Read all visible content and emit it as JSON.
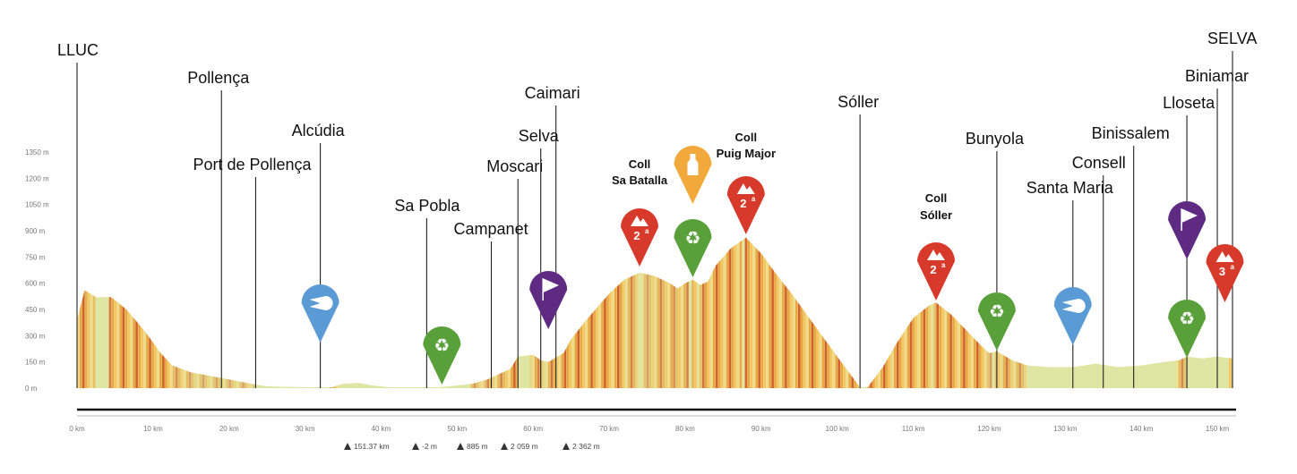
{
  "chart_data": {
    "type": "area",
    "title": "",
    "xlabel": "",
    "ylabel": "",
    "xlim": [
      0,
      152
    ],
    "ylim": [
      0,
      1350
    ],
    "y_ticks": [
      "0 m",
      "150 m",
      "300 m",
      "450 m",
      "600 m",
      "750 m",
      "900 m",
      "1050 m",
      "1200 m",
      "1350 m"
    ],
    "x_ticks": [
      "0 km",
      "10 km",
      "20 km",
      "30 km",
      "40 km",
      "50 km",
      "60 km",
      "70 km",
      "80 km",
      "90 km",
      "100 km",
      "110 km",
      "120 km",
      "130 km",
      "140 km",
      "150 km"
    ],
    "x_tick_values": [
      0,
      10,
      20,
      30,
      40,
      50,
      60,
      70,
      80,
      90,
      100,
      110,
      120,
      130,
      140,
      150
    ],
    "y_tick_values": [
      0,
      150,
      300,
      450,
      600,
      750,
      900,
      1050,
      1200,
      1350
    ],
    "profile": {
      "x": [
        0,
        1,
        2.5,
        4.5,
        6.5,
        9,
        11,
        12.5,
        15,
        20,
        23.5,
        25,
        30,
        32,
        33.5,
        35,
        37,
        39,
        41,
        46,
        47.5,
        50,
        52,
        54,
        55,
        57,
        58,
        60,
        61,
        62,
        63,
        64,
        65,
        67,
        70,
        72,
        74,
        76,
        78,
        79,
        80,
        81,
        82,
        83,
        84,
        86,
        88,
        90,
        92,
        94,
        96,
        98,
        100,
        103,
        104,
        106,
        108,
        110,
        112,
        113,
        115,
        117,
        119,
        120,
        121,
        123,
        125,
        128,
        131,
        134,
        137,
        140,
        143,
        145,
        146,
        148,
        150,
        152
      ],
      "y": [
        390,
        560,
        520,
        520,
        450,
        320,
        200,
        130,
        90,
        50,
        20,
        10,
        5,
        5,
        5,
        25,
        30,
        15,
        5,
        5,
        5,
        15,
        25,
        50,
        70,
        110,
        180,
        190,
        160,
        150,
        175,
        200,
        280,
        390,
        540,
        620,
        660,
        640,
        600,
        570,
        600,
        620,
        590,
        610,
        700,
        800,
        860,
        770,
        650,
        540,
        420,
        300,
        180,
        5,
        5,
        120,
        270,
        400,
        470,
        490,
        420,
        330,
        240,
        200,
        210,
        160,
        130,
        120,
        120,
        140,
        120,
        130,
        150,
        160,
        180,
        170,
        180,
        170
      ]
    },
    "stats": {
      "distance": "151.37 km",
      "min_altitude": "-2 m",
      "max_altitude": "885 m",
      "ascent": "2 059 m",
      "descent": "2 362 m"
    },
    "towns": [
      {
        "name": "LLUC",
        "km": 0
      },
      {
        "name": "Pollença",
        "km": 19
      },
      {
        "name": "Port de Pollença",
        "km": 23.5
      },
      {
        "name": "Alcúdia",
        "km": 32
      },
      {
        "name": "Sa Pobla",
        "km": 46
      },
      {
        "name": "Campanet",
        "km": 54.5
      },
      {
        "name": "Moscari",
        "km": 58
      },
      {
        "name": "Selva",
        "km": 61
      },
      {
        "name": "Caimari",
        "km": 63
      },
      {
        "name": "Sóller",
        "km": 103
      },
      {
        "name": "Bunyola",
        "km": 121
      },
      {
        "name": "Santa Maria",
        "km": 131
      },
      {
        "name": "Consell",
        "km": 135
      },
      {
        "name": "Binissalem",
        "km": 139
      },
      {
        "name": "Lloseta",
        "km": 146
      },
      {
        "name": "Biniamar",
        "km": 150
      },
      {
        "name": "SELVA",
        "km": 152
      }
    ],
    "climbs": [
      {
        "name_line1": "Coll",
        "name_line2": "Sa Batalla",
        "category": "2",
        "category_sup": "a",
        "km": 74
      },
      {
        "name_line1": "Coll",
        "name_line2": "Puig Major",
        "category": "2",
        "category_sup": "a",
        "km": 88
      },
      {
        "name_line1": "Coll",
        "name_line2": "Sóller",
        "category": "2",
        "category_sup": "a",
        "km": 113
      },
      {
        "name_line1": "",
        "name_line2": "",
        "category": "3",
        "category_sup": "a",
        "km": 151
      }
    ],
    "markers": [
      {
        "type": "sprint",
        "icon": "meteor-icon",
        "km": 32,
        "color": "#5b9bd5"
      },
      {
        "type": "recycle",
        "icon": "recycle-icon",
        "km": 48,
        "color": "#5aa03a"
      },
      {
        "type": "flag",
        "icon": "flag-icon",
        "km": 62,
        "color": "#5e2a82"
      },
      {
        "type": "feed",
        "icon": "bottle-icon",
        "km": 81,
        "color": "#f0a93a"
      },
      {
        "type": "recycle",
        "icon": "recycle-icon",
        "km": 81,
        "color": "#5aa03a"
      },
      {
        "type": "recycle",
        "icon": "recycle-icon",
        "km": 121,
        "color": "#5aa03a"
      },
      {
        "type": "sprint",
        "icon": "meteor-icon",
        "km": 131,
        "color": "#5b9bd5"
      },
      {
        "type": "flag",
        "icon": "flag-icon",
        "km": 146,
        "color": "#5e2a82"
      },
      {
        "type": "recycle",
        "icon": "recycle-icon",
        "km": 146,
        "color": "#5aa03a"
      }
    ],
    "colors": {
      "climb_light": "#f3d98a",
      "climb_mid": "#eaa640",
      "climb_dark": "#d4612a",
      "flat": "#dfe6a4",
      "category_pin": "#d73a2a"
    },
    "grid": false
  }
}
